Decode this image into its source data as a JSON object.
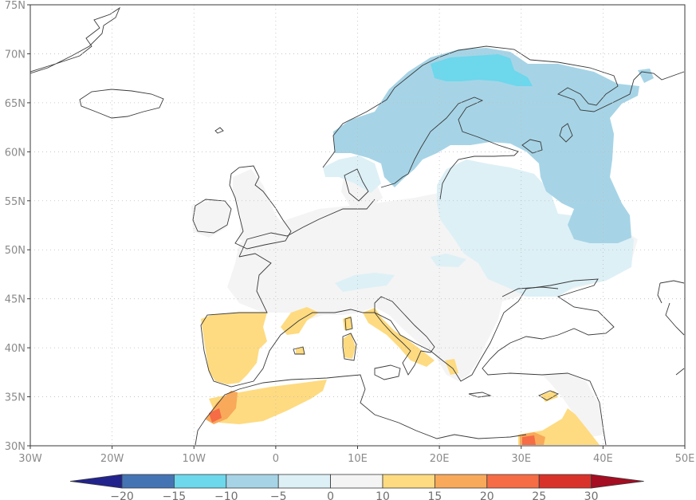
{
  "map": {
    "lat_ticks": [
      "75N",
      "70N",
      "65N",
      "60N",
      "55N",
      "50N",
      "45N",
      "40N",
      "35N",
      "30N"
    ],
    "lon_ticks": [
      "30W",
      "20W",
      "10W",
      "0",
      "10E",
      "20E",
      "30E",
      "40E",
      "50E"
    ],
    "lat_range": [
      30,
      75
    ],
    "lon_range": [
      -30,
      50
    ],
    "grid": "dotted"
  },
  "colorbar": {
    "labels": [
      "−20",
      "−15",
      "−10",
      "−5",
      "0",
      "10",
      "15",
      "20",
      "25",
      "30"
    ],
    "colors": {
      "below": "#22238c",
      "b1": "#4574b4",
      "b2": "#6dd7ec",
      "b3": "#a6d4e6",
      "b4": "#ddf0f6",
      "b5": "#f4f4f4",
      "b6": "#fedb80",
      "b7": "#f8a95a",
      "b8": "#f56c45",
      "b9": "#d9322a",
      "above": "#a40d22"
    }
  },
  "colors": {
    "coast": "#3a3a3a",
    "frame": "#3a3a3a",
    "gridline": "#bdbdbd"
  }
}
